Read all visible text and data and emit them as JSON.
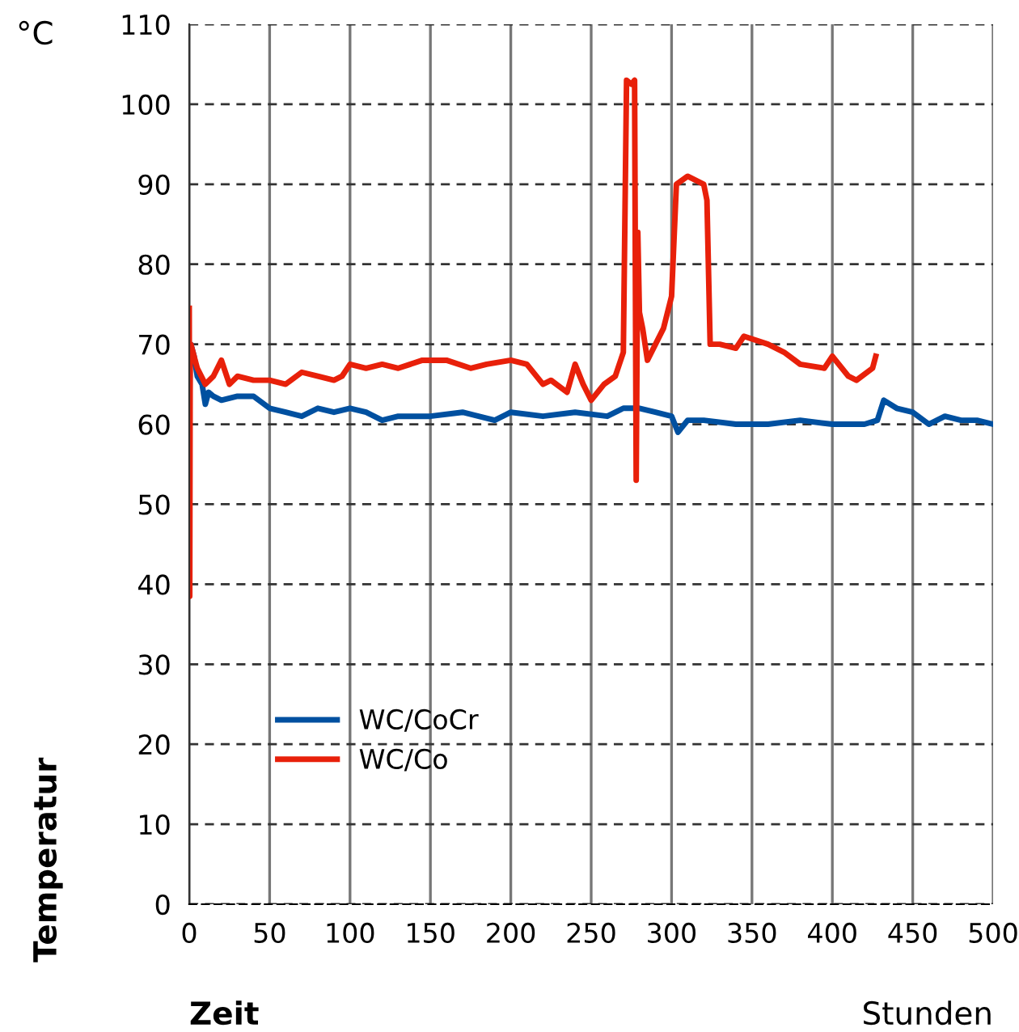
{
  "chart_data": {
    "type": "line",
    "xlabel": "Zeit",
    "ylabel": "Temperatur",
    "annotations": [
      "°C",
      "Stunden"
    ],
    "xlim": [
      0,
      500
    ],
    "xticks": [
      0,
      50,
      100,
      150,
      200,
      250,
      300,
      350,
      400,
      450,
      500
    ],
    "ylim": [
      0,
      110
    ],
    "yticks": [
      0,
      10,
      20,
      30,
      40,
      50,
      60,
      70,
      80,
      90,
      100,
      110
    ],
    "grid": true,
    "legend": "bottom left",
    "marker": "none",
    "line_style": "solid",
    "series": [
      {
        "name": "WC/CoCr",
        "color": "#0050a0",
        "x": [
          0,
          0.5,
          1,
          3,
          5,
          8,
          10,
          12,
          15,
          20,
          30,
          40,
          50,
          60,
          70,
          80,
          90,
          100,
          110,
          120,
          130,
          150,
          170,
          190,
          200,
          220,
          240,
          260,
          270,
          280,
          290,
          300,
          304,
          310,
          320,
          340,
          360,
          380,
          400,
          420,
          428,
          432,
          440,
          450,
          460,
          470,
          480,
          490,
          500
        ],
        "values": [
          58.5,
          69,
          70,
          68.5,
          66,
          65,
          62.5,
          64,
          63.5,
          63,
          63.5,
          63.5,
          62,
          61.5,
          61,
          62,
          61.5,
          62,
          61.5,
          60.5,
          61,
          61,
          61.5,
          60.5,
          61.5,
          61,
          61.5,
          61,
          62,
          62,
          61.5,
          61,
          59,
          60.5,
          60.5,
          60,
          60,
          60.5,
          60,
          60,
          60.5,
          63,
          62,
          61.5,
          60,
          61,
          60.5,
          60.5,
          60
        ]
      },
      {
        "name": "WC/Co",
        "color": "#e8200a",
        "x": [
          0,
          0.3,
          0.6,
          1,
          3,
          5,
          10,
          15,
          20,
          25,
          30,
          40,
          50,
          60,
          70,
          80,
          90,
          95,
          100,
          110,
          120,
          130,
          145,
          160,
          175,
          185,
          200,
          210,
          220,
          225,
          235,
          240,
          245,
          250,
          258,
          265,
          270,
          272,
          275,
          277,
          278,
          279,
          280,
          282,
          285,
          290,
          295,
          300,
          303,
          310,
          320,
          322,
          324,
          330,
          340,
          345,
          360,
          370,
          380,
          395,
          400,
          410,
          415,
          425,
          427
        ],
        "values": [
          74.5,
          38.5,
          70,
          70,
          68.5,
          67,
          65,
          66,
          68,
          65,
          66,
          65.5,
          65.5,
          65,
          66.5,
          66,
          65.5,
          66,
          67.5,
          67,
          67.5,
          67,
          68,
          68,
          67,
          67.5,
          68,
          67.5,
          65,
          65.5,
          64,
          67.5,
          65,
          63,
          65,
          66,
          69,
          103,
          102.5,
          103,
          53,
          84,
          74,
          72,
          68,
          70,
          72,
          76,
          90,
          91,
          90,
          88,
          70,
          70,
          69.5,
          71,
          70,
          69,
          67.5,
          67,
          68.5,
          66,
          65.5,
          67,
          68.5
        ]
      }
    ]
  }
}
